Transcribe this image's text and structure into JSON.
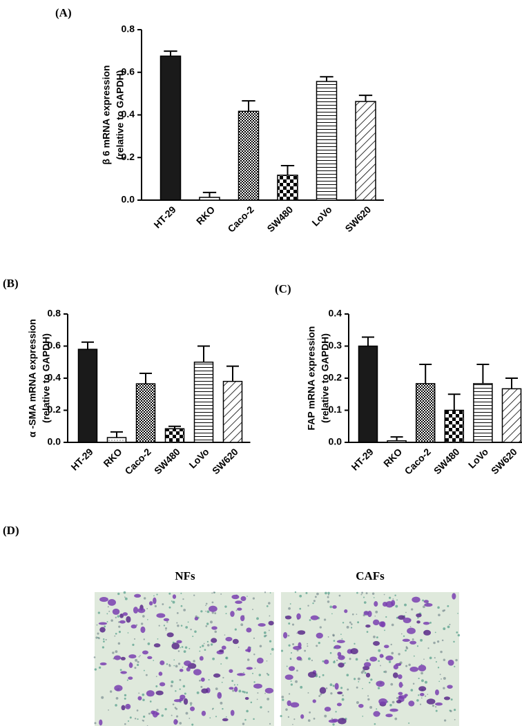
{
  "chart_data": [
    {
      "type": "bar",
      "panel_label": "(A)",
      "ylabel": [
        "β 6 mRNA expression",
        "(relative to GAPDH)"
      ],
      "categories": [
        "HT-29",
        "RKO",
        "Caco-2",
        "SW480",
        "LoVo",
        "SW620"
      ],
      "values": [
        0.676,
        0.013,
        0.417,
        0.117,
        0.557,
        0.463
      ],
      "errors": [
        0.023,
        0.023,
        0.049,
        0.045,
        0.022,
        0.029
      ],
      "fills": [
        "solid",
        "dots",
        "fine-check",
        "check",
        "hlines",
        "diag"
      ],
      "ylim": [
        0,
        0.8
      ],
      "yticks": [
        {
          "value": 0,
          "label": "0.0"
        },
        0.2,
        0.4,
        0.6,
        0.8
      ]
    },
    {
      "type": "bar",
      "panel_label": "(B)",
      "ylabel": [
        "α -SMA mRNA expression",
        "(relative to GAPDH)"
      ],
      "categories": [
        "HT-29",
        "RKO",
        "Caco-2",
        "SW480",
        "LoVo",
        "SW620"
      ],
      "values": [
        0.58,
        0.03,
        0.365,
        0.085,
        0.5,
        0.38
      ],
      "errors": [
        0.045,
        0.035,
        0.065,
        0.015,
        0.1,
        0.095
      ],
      "fills": [
        "solid",
        "dots",
        "fine-check",
        "check",
        "hlines",
        "diag"
      ],
      "ylim": [
        0,
        0.8
      ],
      "yticks": [
        {
          "value": 0,
          "label": "0.0"
        },
        0.2,
        0.4,
        0.6,
        0.8
      ]
    },
    {
      "type": "bar",
      "panel_label": "(C)",
      "ylabel": [
        "FAP mRNA expression",
        "(relative to GAPDH)"
      ],
      "categories": [
        "HT-29",
        "RKO",
        "Caco-2",
        "SW480",
        "LoVo",
        "SW620"
      ],
      "values": [
        0.3,
        0.005,
        0.183,
        0.1,
        0.183,
        0.167
      ],
      "errors": [
        0.028,
        0.012,
        0.06,
        0.05,
        0.06,
        0.033
      ],
      "fills": [
        "solid",
        "dots",
        "fine-check",
        "check",
        "hlines",
        "diag"
      ],
      "ylim": [
        0,
        0.4
      ],
      "yticks": [
        {
          "value": 0,
          "label": "0.0"
        },
        0.1,
        0.2,
        0.3,
        0.4
      ]
    }
  ],
  "panel_d": {
    "label": "(D)",
    "images": [
      "NFs",
      "CAFs"
    ]
  }
}
